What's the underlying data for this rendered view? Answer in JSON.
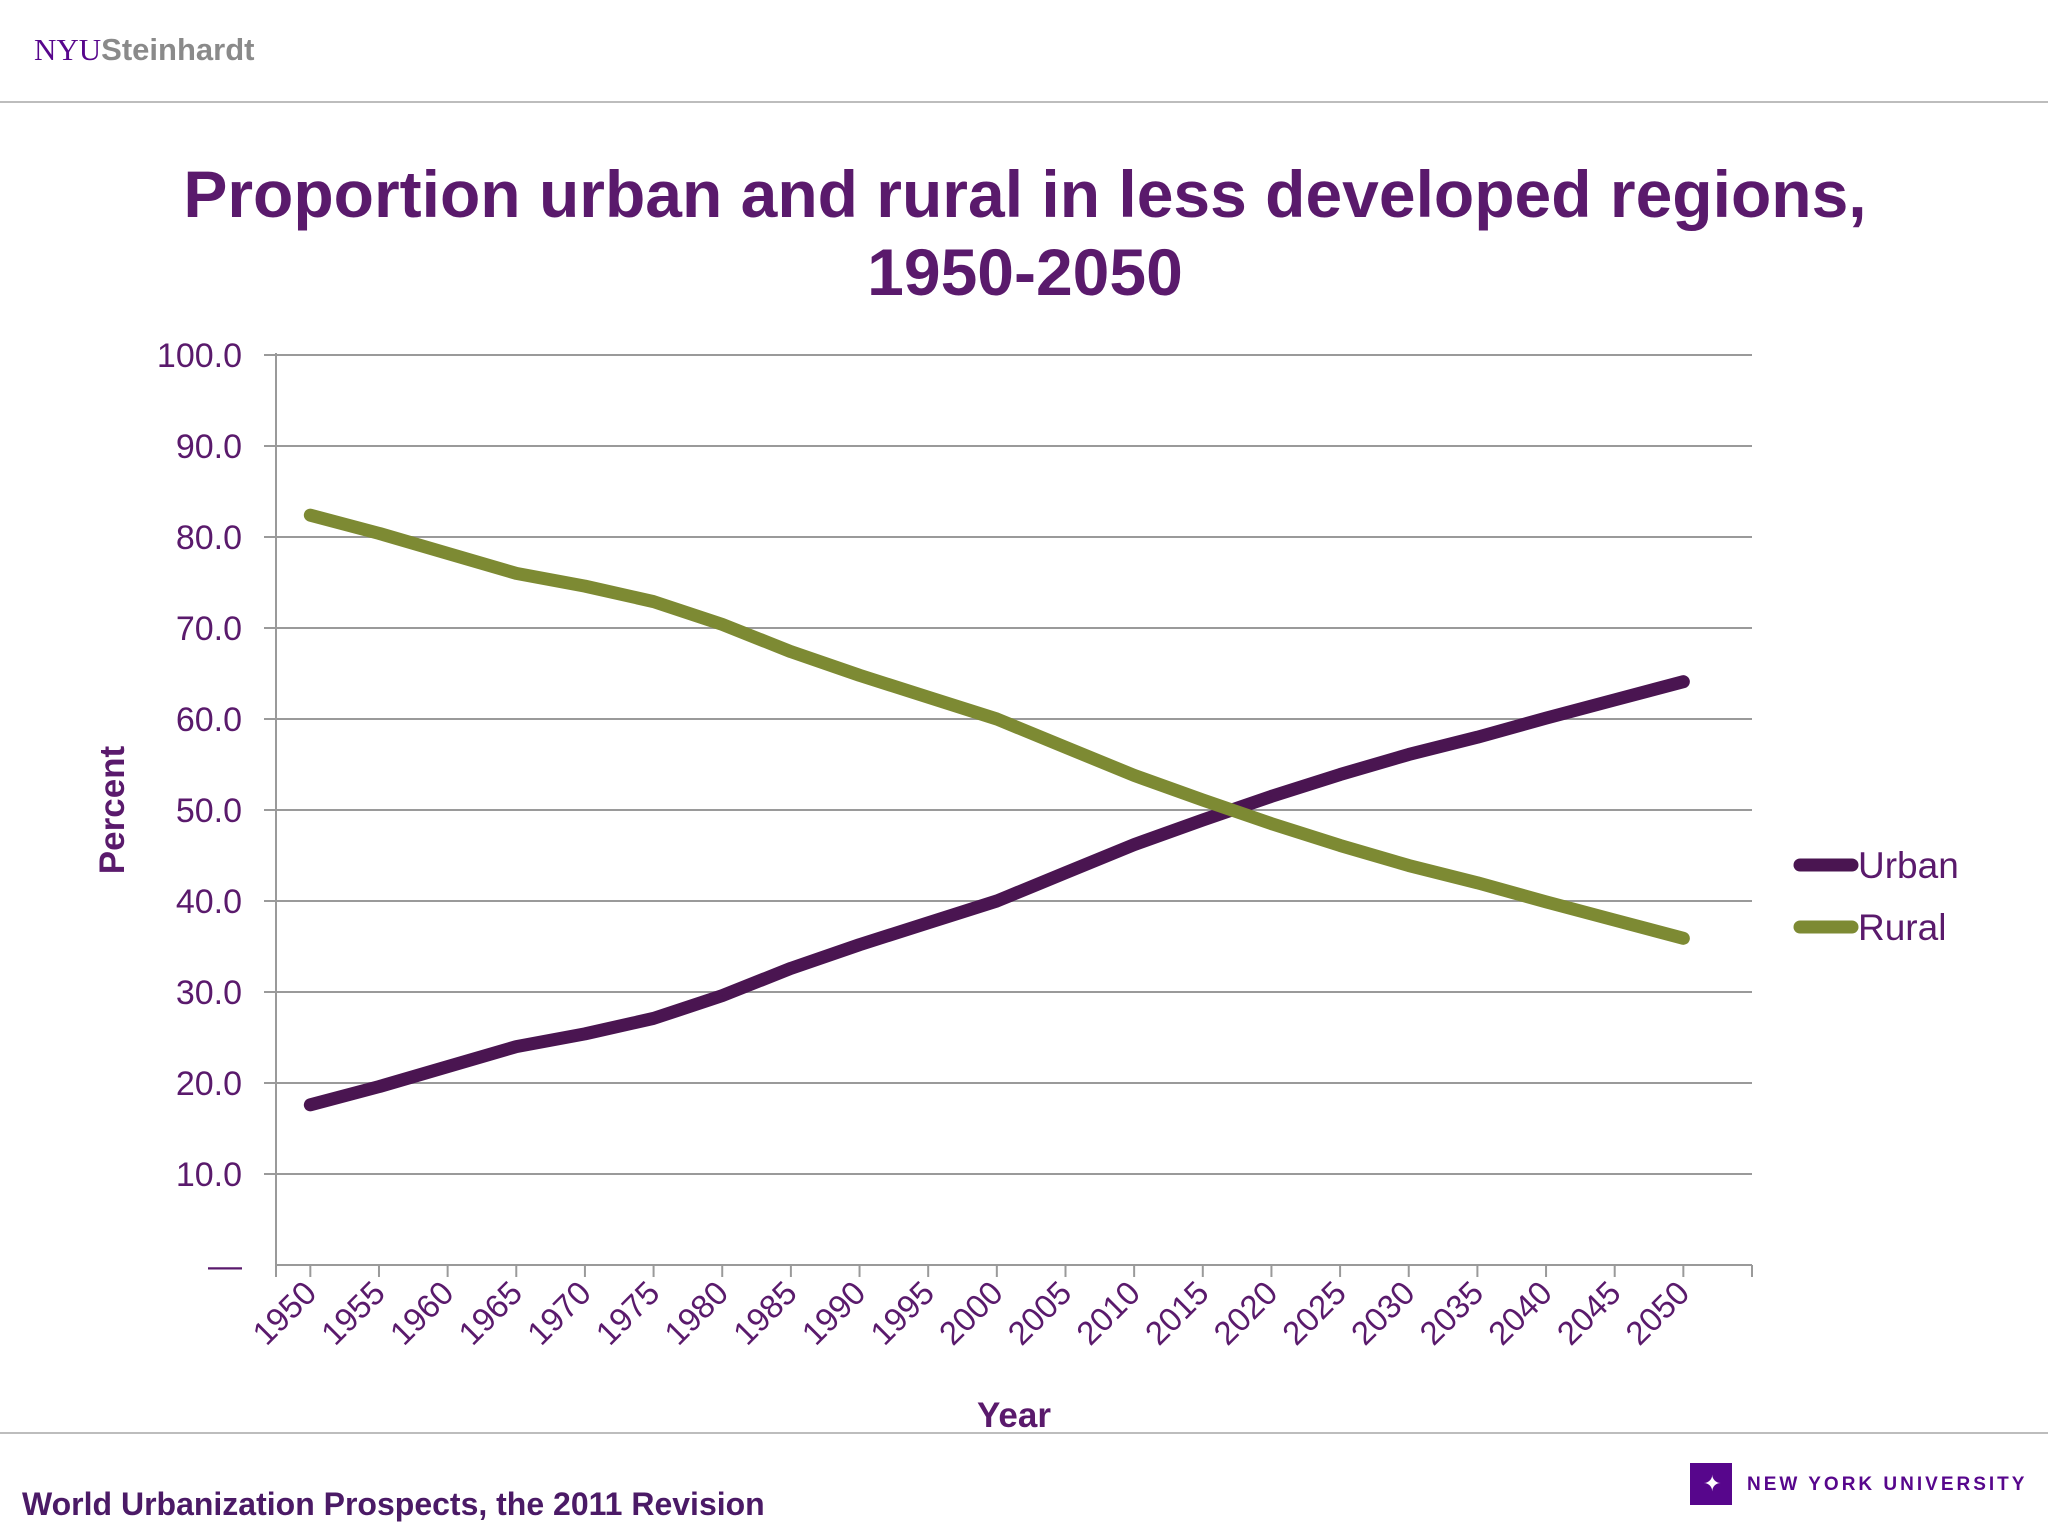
{
  "header": {
    "logo_nyu": "NYU",
    "logo_school": "Steinhardt"
  },
  "footer": {
    "source": "World Urbanization Prospects, the 2011 Revision",
    "university": "NEW YORK UNIVERSITY"
  },
  "colors": {
    "urban": "#4a1551",
    "rural": "#7d8a33",
    "text": "#5a1a6c",
    "grid": "#9a9a9a"
  },
  "chart_data": {
    "type": "line",
    "title": "Proportion urban and rural in less developed regions, 1950-2050",
    "xlabel": "Year",
    "ylabel": "Percent",
    "ylim": [
      0,
      100
    ],
    "yticks": [
      "—",
      "10.0",
      "20.0",
      "30.0",
      "40.0",
      "50.0",
      "60.0",
      "70.0",
      "80.0",
      "90.0",
      "100.0"
    ],
    "grid": true,
    "legend_position": "right",
    "categories": [
      "1950",
      "1955",
      "1960",
      "1965",
      "1970",
      "1975",
      "1980",
      "1985",
      "1990",
      "1995",
      "2000",
      "2005",
      "2010",
      "2015",
      "2020",
      "2025",
      "2030",
      "2035",
      "2040",
      "2045",
      "2050"
    ],
    "series": [
      {
        "name": "Urban",
        "color": "#4a1551",
        "values": [
          17.6,
          19.6,
          21.8,
          24.0,
          25.4,
          27.1,
          29.6,
          32.6,
          35.2,
          37.6,
          40.0,
          43.1,
          46.2,
          48.9,
          51.5,
          53.9,
          56.1,
          58.0,
          60.1,
          62.1,
          64.1
        ]
      },
      {
        "name": "Rural",
        "color": "#7d8a33",
        "values": [
          82.4,
          80.4,
          78.2,
          76.0,
          74.6,
          72.9,
          70.4,
          67.4,
          64.8,
          62.4,
          60.0,
          56.9,
          53.8,
          51.1,
          48.5,
          46.1,
          43.9,
          42.0,
          39.9,
          37.9,
          35.9
        ]
      }
    ]
  }
}
